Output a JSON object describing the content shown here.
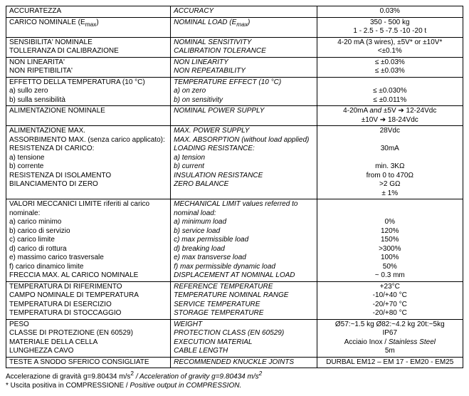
{
  "rows": [
    {
      "c1": "ACCURATEZZA",
      "c2": "ACCURACY",
      "c3": "0.03%"
    },
    {
      "c1": "CARICO NOMINALE (E<sub>max</sub>)",
      "c2": "NOMINAL LOAD (E<sub>max</sub>)",
      "c3": "350 - 500 kg<br>1 - 2.5 - 5  -7.5 -10 -20 t"
    },
    {
      "c1": "SENSIBILITA' NOMINALE<br>TOLLERANZA DI CALIBRAZIONE",
      "c2": "NOMINAL SENSITIVITY<br>CALIBRATION TOLERANCE",
      "c3": "4-20 mA (3 wires), ±5V*  or  ±10V*<br>&lt;±0.1%"
    },
    {
      "c1": "NON LINEARITA'<br>NON RIPETIBILITA'",
      "c2": "NON LINEARITY<br>NON REPEATABILITY",
      "c3": "≤ ±0.03%<br>≤ ±0.03%"
    },
    {
      "c1": "EFFETTO DELLA TEMPERATURA (10 °C)<br>a) sullo zero<br>b) sulla sensibilità",
      "c2": "TEMPERATURE EFFECT (10 °C)<br>a) on zero<br>b) on sensitivity",
      "c3": "<br>≤ ±0.030%<br>≤ ±0.011%"
    },
    {
      "c1": "ALIMENTAZIONE NOMINALE",
      "c2": "NOMINAL POWER SUPPLY",
      "c3": "4-20mA <i>and</i> ±5V  ➔  12-24Vdc<br>±10V  ➔ 18-24Vdc"
    },
    {
      "c1": "ALIMENTAZIONE MAX.<br>ASSORBIMENTO MAX. (senza carico applicato):<br>RESISTENZA DI CARICO:<br>a) tensione<br>b) corrente<br>RESISTENZA DI ISOLAMENTO<br>BILANCIAMENTO DI ZERO",
      "c2": "MAX. POWER SUPPLY<br>MAX. ABSORPTION (without load applied)<br>LOADING RESISTANCE:<br>a) tension<br>b) current<br>INSULATION RESISTANCE<br>ZERO BALANCE",
      "c3": "28Vdc<br><br>30mA<br><br>min. 3KΩ<br>from 0 to 470Ω<br>&gt;2 GΩ<br>± 1%"
    },
    {
      "c1": "VALORI MECCANICI LIMITE riferiti al carico nominale:<br>a) carico minimo<br>b) carico di servizio<br>c) carico limite<br>d) carico di rottura<br>e) massimo carico trasversale<br>f) carico dinamico  limite<br>FRECCIA MAX. AL CARICO NOMINALE",
      "c2": "MECHANICAL LIMIT values referred to nominal load:<br>a) minimum load<br>b) service load<br>c) max permissible load<br>d) breaking load<br>e) max transverse load<br>f) max permissible dynamic load<br>DISPLACEMENT AT NOMINAL LOAD",
      "c3": "<br><br>0%<br>120%<br>150%<br>&gt;300%<br>100%<br>50%<br>~ 0.3 mm"
    },
    {
      "c1": "TEMPERATURA DI RIFERIMENTO<br>CAMPO NOMINALE DI TEMPERATURA<br>TEMPERATURA DI ESERCIZIO<br>TEMPERATURA DI STOCCAGGIO",
      "c2": "REFERENCE TEMPERATURE<br>TEMPERATURE NOMINAL RANGE<br>SERVICE TEMPERATURE<br>STORAGE TEMPERATURE",
      "c3": "+23°C<br>-10/+40 °C<br>-20/+70 °C<br>-20/+80 °C"
    },
    {
      "c1": "PESO<br>CLASSE DI PROTEZIONE (EN 60529)<br>MATERIALE DELLA CELLA<br>LUNGHEZZA CAVO",
      "c2": "WEIGHT<br>PROTECTION CLASS (EN 60529)<br>EXECUTION MATERIAL<br>CABLE LENGTH",
      "c3": "Ø57:~1.5 kg  Ø82:~4.2 kg  20t:~5kg<br>IP67<br>Acciaio Inox / <i>Stainless Steel</i><br>5m"
    },
    {
      "c1": "TESTE A SNODO SFERICO CONSIGLIATE",
      "c2": "RECOMMENDED KNUCKLE JOINTS",
      "c3": "DURBAL EM12 – EM 17 - EM20 - EM25"
    }
  ],
  "footnote1_a": "Accelerazione di gravità g=9.80434 m/s",
  "footnote1_b": " /  Acceleration of gravity g=9.80434 m/s",
  "footnote2_a": "* Uscita positiva in COMPRESSIONE / ",
  "footnote2_b": "Positive output in COMPRESSION."
}
